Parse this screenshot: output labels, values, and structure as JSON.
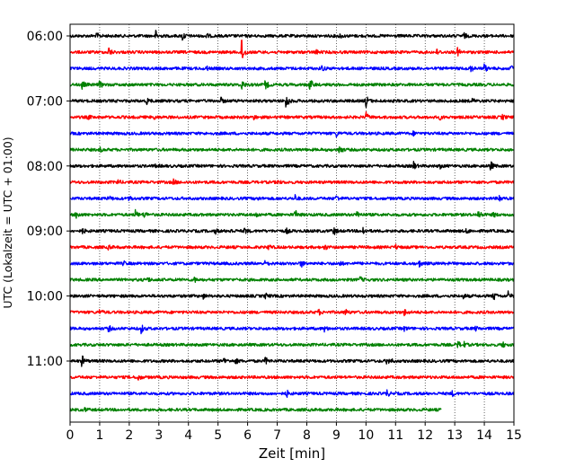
{
  "chart_data": {
    "type": "line",
    "title": "",
    "xlabel": "Zeit  [min]",
    "ylabel": "UTC (Lokalzeit = UTC + 01:00)",
    "xlim": [
      0,
      15
    ],
    "x_ticks": [
      0,
      1,
      2,
      3,
      4,
      5,
      6,
      7,
      8,
      9,
      10,
      11,
      12,
      13,
      14,
      15
    ],
    "x_grid": "dotted vertical lines at each minute",
    "y_ticks": [
      "06:00",
      "07:00",
      "08:00",
      "09:00",
      "10:00",
      "11:00"
    ],
    "trace_interval_minutes": 15,
    "start_time": "06:00",
    "color_cycle": [
      "#000000",
      "#ff0000",
      "#0000ff",
      "#008000"
    ],
    "traces": [
      {
        "start": "06:00",
        "end_minute": 15,
        "events": [
          [
            0.9,
            0.5
          ],
          [
            2.9,
            1.0
          ],
          [
            3.8,
            1.0
          ],
          [
            4.6,
            0.5
          ],
          [
            9.1,
            0.5
          ],
          [
            13.3,
            0.6
          ]
        ]
      },
      {
        "start": "06:15",
        "end_minute": 15,
        "events": [
          [
            1.3,
            1.0
          ],
          [
            5.8,
            3.0
          ],
          [
            8.3,
            0.4
          ],
          [
            12.4,
            0.5
          ],
          [
            13.1,
            0.8
          ]
        ]
      },
      {
        "start": "06:30",
        "end_minute": 15,
        "events": [
          [
            4.6,
            0.4
          ],
          [
            8.5,
            0.6
          ],
          [
            13.5,
            1.2
          ],
          [
            14.0,
            0.8
          ],
          [
            14.9,
            0.8
          ]
        ]
      },
      {
        "start": "06:45",
        "end_minute": 15,
        "events": [
          [
            0.4,
            0.8
          ],
          [
            1.0,
            0.7
          ],
          [
            5.8,
            1.0
          ],
          [
            6.6,
            1.0
          ],
          [
            8.1,
            1.5
          ]
        ]
      },
      {
        "start": "07:00",
        "end_minute": 15,
        "events": [
          [
            2.6,
            0.6
          ],
          [
            5.1,
            0.5
          ],
          [
            7.3,
            1.8
          ],
          [
            10.0,
            1.2
          ],
          [
            13.6,
            0.4
          ]
        ]
      },
      {
        "start": "07:15",
        "end_minute": 15,
        "events": [
          [
            0.6,
            0.4
          ],
          [
            2.8,
            0.5
          ],
          [
            6.2,
            0.4
          ],
          [
            10.0,
            0.8
          ],
          [
            12.5,
            0.4
          ],
          [
            14.6,
            0.5
          ]
        ]
      },
      {
        "start": "07:30",
        "end_minute": 15,
        "events": [
          [
            9.0,
            0.5
          ],
          [
            11.6,
            0.3
          ]
        ]
      },
      {
        "start": "07:45",
        "end_minute": 15,
        "events": [
          [
            1.0,
            0.4
          ],
          [
            9.1,
            1.0
          ]
        ]
      },
      {
        "start": "08:00",
        "end_minute": 15,
        "events": [
          [
            2.9,
            0.4
          ],
          [
            11.6,
            0.8
          ],
          [
            12.5,
            0.4
          ],
          [
            14.2,
            1.0
          ]
        ]
      },
      {
        "start": "08:15",
        "end_minute": 15,
        "events": [
          [
            1.6,
            0.5
          ],
          [
            3.5,
            0.5
          ],
          [
            7.0,
            0.4
          ]
        ]
      },
      {
        "start": "08:30",
        "end_minute": 15,
        "events": [
          [
            1.3,
            0.5
          ],
          [
            2.0,
            0.5
          ],
          [
            6.3,
            0.5
          ],
          [
            7.6,
            0.6
          ],
          [
            9.0,
            0.6
          ],
          [
            14.5,
            0.7
          ]
        ]
      },
      {
        "start": "08:45",
        "end_minute": 15,
        "events": [
          [
            0.2,
            0.8
          ],
          [
            2.2,
            0.8
          ],
          [
            2.5,
            0.7
          ],
          [
            6.3,
            0.4
          ],
          [
            7.6,
            0.9
          ],
          [
            9.7,
            0.9
          ],
          [
            13.8,
            1.0
          ],
          [
            14.3,
            0.5
          ]
        ]
      },
      {
        "start": "09:00",
        "end_minute": 15,
        "events": [
          [
            0.4,
            0.6
          ],
          [
            4.9,
            0.5
          ],
          [
            5.4,
            0.5
          ],
          [
            5.9,
            0.6
          ],
          [
            7.3,
            0.5
          ],
          [
            8.9,
            0.9
          ],
          [
            9.9,
            0.7
          ],
          [
            13.4,
            0.5
          ]
        ]
      },
      {
        "start": "09:15",
        "end_minute": 15,
        "events": [
          [
            1.3,
            0.4
          ],
          [
            6.7,
            0.6
          ],
          [
            8.6,
            0.5
          ],
          [
            11.0,
            0.4
          ]
        ]
      },
      {
        "start": "09:30",
        "end_minute": 15,
        "events": [
          [
            1.8,
            0.4
          ],
          [
            6.6,
            0.6
          ],
          [
            7.8,
            0.8
          ],
          [
            9.1,
            0.5
          ],
          [
            11.8,
            0.6
          ]
        ]
      },
      {
        "start": "09:45",
        "end_minute": 15,
        "events": [
          [
            2.6,
            0.6
          ],
          [
            4.2,
            0.4
          ],
          [
            9.8,
            0.5
          ]
        ]
      },
      {
        "start": "10:00",
        "end_minute": 15,
        "events": [
          [
            4.5,
            0.4
          ],
          [
            6.6,
            0.5
          ],
          [
            13.3,
            0.4
          ],
          [
            14.3,
            1.0
          ],
          [
            14.8,
            0.8
          ]
        ]
      },
      {
        "start": "10:15",
        "end_minute": 15,
        "events": [
          [
            1.0,
            0.5
          ],
          [
            8.4,
            0.5
          ],
          [
            9.3,
            0.6
          ],
          [
            11.3,
            0.6
          ]
        ]
      },
      {
        "start": "10:30",
        "end_minute": 15,
        "events": [
          [
            1.3,
            0.6
          ],
          [
            2.4,
            0.9
          ],
          [
            8.6,
            0.5
          ],
          [
            11.3,
            0.4
          ],
          [
            13.7,
            0.4
          ]
        ]
      },
      {
        "start": "10:45",
        "end_minute": 15,
        "events": [
          [
            13.1,
            0.7
          ],
          [
            13.3,
            0.5
          ],
          [
            14.6,
            0.6
          ]
        ]
      },
      {
        "start": "11:00",
        "end_minute": 15,
        "events": [
          [
            0.4,
            1.2
          ],
          [
            5.2,
            0.6
          ],
          [
            5.6,
            0.5
          ],
          [
            6.6,
            0.7
          ],
          [
            10.7,
            0.6
          ],
          [
            10.8,
            0.5
          ]
        ]
      },
      {
        "start": "11:15",
        "end_minute": 15,
        "events": [
          [
            2.3,
            0.6
          ]
        ]
      },
      {
        "start": "11:30",
        "end_minute": 15,
        "events": [
          [
            7.3,
            0.8
          ],
          [
            10.7,
            0.7
          ],
          [
            12.9,
            0.5
          ]
        ]
      },
      {
        "start": "11:45",
        "end_minute": 12.55,
        "events": [
          [
            0.5,
            0.3
          ]
        ]
      }
    ]
  }
}
